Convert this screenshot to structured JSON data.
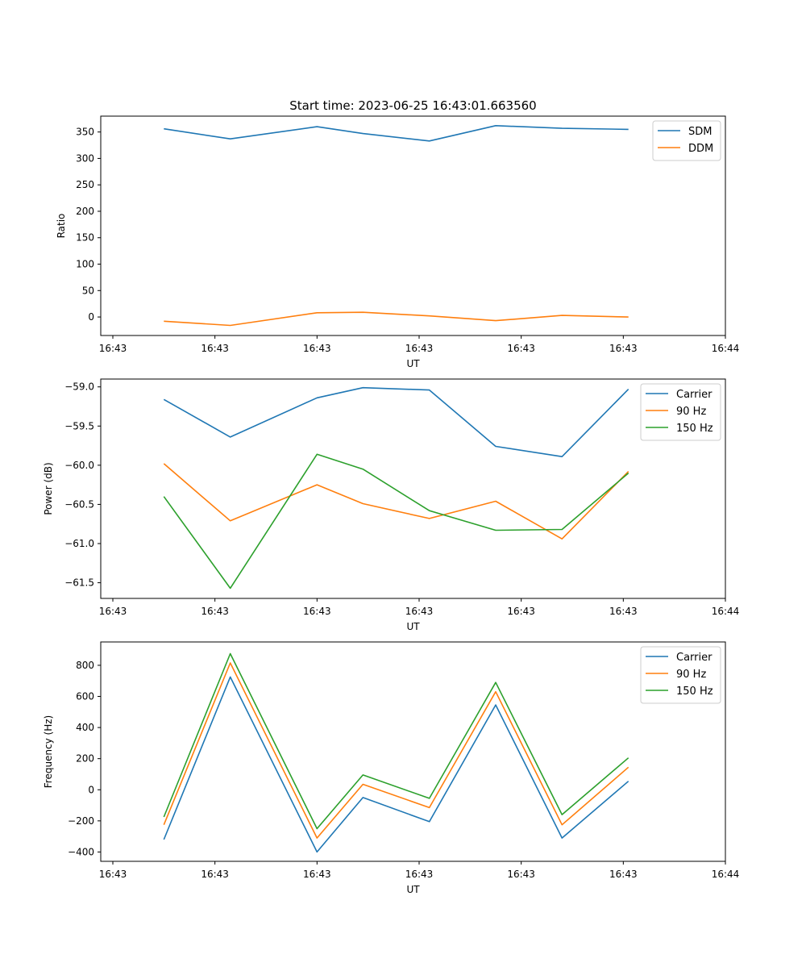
{
  "chart_data": [
    {
      "type": "line",
      "title": "Start time: 2023-06-25 16:43:01.663560",
      "xlabel": "UT",
      "ylabel": "Ratio",
      "x_tick_labels": [
        "16:43",
        "16:43",
        "16:43",
        "16:43",
        "16:43",
        "16:43",
        "16:44"
      ],
      "xlim": [
        0,
        6
      ],
      "ylim": [
        -35,
        380
      ],
      "y_ticks": [
        0,
        50,
        100,
        150,
        200,
        250,
        300,
        350
      ],
      "legend_position": "top-right",
      "grid": false,
      "x": [
        0.5,
        1.15,
        2.0,
        2.45,
        3.1,
        3.75,
        4.4,
        5.05
      ],
      "series": [
        {
          "name": "SDM",
          "color": "#1f77b4",
          "values": [
            356,
            337,
            360,
            347,
            333,
            362,
            357,
            355
          ]
        },
        {
          "name": "DDM",
          "color": "#ff7f0e",
          "values": [
            -8,
            -16,
            8,
            9,
            2,
            -7,
            3,
            0
          ]
        }
      ]
    },
    {
      "type": "line",
      "title": "",
      "xlabel": "UT",
      "ylabel": "Power (dB)",
      "x_tick_labels": [
        "16:43",
        "16:43",
        "16:43",
        "16:43",
        "16:43",
        "16:43",
        "16:44"
      ],
      "xlim": [
        0,
        6
      ],
      "ylim": [
        -61.7,
        -58.9
      ],
      "y_ticks": [
        -61.5,
        -61.0,
        -60.5,
        -60.0,
        -59.5,
        -59.0
      ],
      "y_tick_labels": [
        "−61.5",
        "−61.0",
        "−60.5",
        "−60.0",
        "−59.5",
        "−59.0"
      ],
      "legend_position": "top-right",
      "grid": false,
      "x": [
        0.5,
        1.15,
        2.0,
        2.45,
        3.1,
        3.75,
        4.4,
        5.05
      ],
      "series": [
        {
          "name": "Carrier",
          "color": "#1f77b4",
          "values": [
            -59.16,
            -59.64,
            -59.14,
            -59.01,
            -59.04,
            -59.76,
            -59.89,
            -59.03
          ]
        },
        {
          "name": "90 Hz",
          "color": "#ff7f0e",
          "values": [
            -59.98,
            -60.71,
            -60.25,
            -60.49,
            -60.68,
            -60.46,
            -60.94,
            -60.08
          ]
        },
        {
          "name": "150 Hz",
          "color": "#2ca02c",
          "values": [
            -60.4,
            -61.57,
            -59.86,
            -60.05,
            -60.58,
            -60.83,
            -60.82,
            -60.1
          ]
        }
      ]
    },
    {
      "type": "line",
      "title": "",
      "xlabel": "UT",
      "ylabel": "Frequency (Hz)",
      "x_tick_labels": [
        "16:43",
        "16:43",
        "16:43",
        "16:43",
        "16:43",
        "16:43",
        "16:44"
      ],
      "xlim": [
        0,
        6
      ],
      "ylim": [
        -460,
        950
      ],
      "y_ticks": [
        -400,
        -200,
        0,
        200,
        400,
        600,
        800
      ],
      "y_tick_labels": [
        "−400",
        "−200",
        "0",
        "200",
        "400",
        "600",
        "800"
      ],
      "legend_position": "top-right",
      "grid": false,
      "x": [
        0.5,
        1.15,
        2.0,
        2.45,
        3.1,
        3.75,
        4.4,
        5.05
      ],
      "series": [
        {
          "name": "Carrier",
          "color": "#1f77b4",
          "values": [
            -320,
            725,
            -400,
            -50,
            -205,
            545,
            -310,
            55
          ]
        },
        {
          "name": "90 Hz",
          "color": "#ff7f0e",
          "values": [
            -225,
            815,
            -310,
            35,
            -115,
            630,
            -225,
            145
          ]
        },
        {
          "name": "150 Hz",
          "color": "#2ca02c",
          "values": [
            -175,
            875,
            -250,
            95,
            -55,
            690,
            -160,
            205
          ]
        }
      ]
    }
  ]
}
